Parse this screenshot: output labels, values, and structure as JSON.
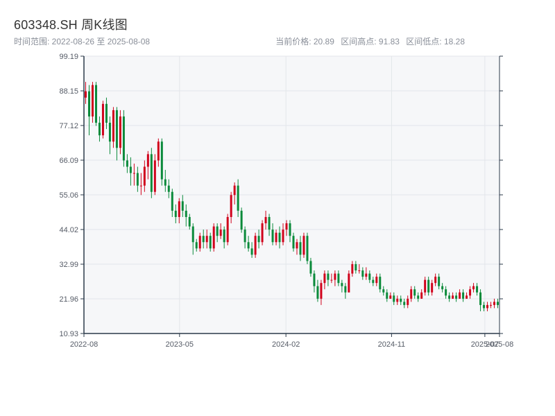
{
  "header": {
    "title": "603348.SH 周K线图",
    "range_text": "时间范围: 2022-08-26 至 2025-08-08",
    "current_price": "当前价格: 20.89",
    "high": "区间高点: 91.83",
    "low": "区间低点: 18.28"
  },
  "colors": {
    "up": "#d0021b",
    "down": "#0a8a3a",
    "grid": "#e3e6ea",
    "plot_bg": "#f6f7f9",
    "axis": "#2b3a4a"
  },
  "chart_data": {
    "type": "candlestick",
    "title": "603348.SH 周K线图",
    "ylim": [
      10.93,
      99.19
    ],
    "y_ticks": [
      "10.93",
      "21.96",
      "32.99",
      "44.02",
      "55.06",
      "66.09",
      "77.12",
      "88.15",
      "99.19"
    ],
    "x_range": [
      "2022-08-26",
      "2025-08-08"
    ],
    "x_ticks": [
      {
        "date": "2022-08-26",
        "label": "2022-08"
      },
      {
        "date": "2023-05-01",
        "label": "2023-05"
      },
      {
        "date": "2024-02-01",
        "label": "2024-02"
      },
      {
        "date": "2024-11-01",
        "label": "2024-11"
      },
      {
        "date": "2025-07-01",
        "label": "2025-07"
      },
      {
        "date": "2025-08-08",
        "label": "2025-08"
      }
    ],
    "candles": [
      [
        86,
        88,
        91,
        84
      ],
      [
        88,
        80,
        90,
        74
      ],
      [
        80,
        90,
        91,
        78
      ],
      [
        90,
        78,
        91,
        77
      ],
      [
        78,
        74,
        80,
        72
      ],
      [
        74,
        84,
        85,
        73
      ],
      [
        84,
        78,
        86,
        76
      ],
      [
        78,
        72,
        80,
        68
      ],
      [
        72,
        82,
        83,
        70
      ],
      [
        82,
        70,
        83,
        66
      ],
      [
        70,
        80,
        82,
        68
      ],
      [
        80,
        66,
        82,
        64
      ],
      [
        66,
        64,
        68,
        62
      ],
      [
        64,
        62,
        67,
        58
      ],
      [
        62,
        62,
        65,
        58
      ],
      [
        62,
        58,
        64,
        56
      ],
      [
        58,
        58,
        62,
        55
      ],
      [
        58,
        64,
        66,
        56
      ],
      [
        64,
        68,
        69,
        60
      ],
      [
        68,
        56,
        70,
        54
      ],
      [
        56,
        66,
        68,
        55
      ],
      [
        66,
        72,
        73,
        64
      ],
      [
        72,
        60,
        73,
        58
      ],
      [
        60,
        58,
        63,
        56
      ],
      [
        58,
        56,
        60,
        54
      ],
      [
        56,
        50,
        57,
        48
      ],
      [
        50,
        48,
        52,
        46
      ],
      [
        48,
        53,
        54,
        46
      ],
      [
        53,
        50,
        55,
        48
      ],
      [
        50,
        48,
        52,
        45
      ],
      [
        48,
        45,
        49,
        44
      ],
      [
        45,
        40,
        46,
        36
      ],
      [
        40,
        38,
        41,
        37
      ],
      [
        38,
        42,
        43,
        37
      ],
      [
        42,
        40,
        44,
        38
      ],
      [
        40,
        42,
        44,
        38
      ],
      [
        42,
        38,
        43,
        37
      ],
      [
        38,
        45,
        46,
        37
      ],
      [
        45,
        42,
        46,
        40
      ],
      [
        42,
        44,
        46,
        41
      ],
      [
        44,
        40,
        45,
        38
      ],
      [
        40,
        48,
        49,
        39
      ],
      [
        48,
        55,
        56,
        46
      ],
      [
        55,
        58,
        59,
        52
      ],
      [
        58,
        50,
        60,
        48
      ],
      [
        50,
        44,
        51,
        43
      ],
      [
        44,
        40,
        45,
        38
      ],
      [
        40,
        38,
        42,
        37
      ],
      [
        38,
        36,
        40,
        35
      ],
      [
        36,
        42,
        43,
        35
      ],
      [
        42,
        40,
        44,
        38
      ],
      [
        40,
        46,
        47,
        39
      ],
      [
        46,
        48,
        50,
        44
      ],
      [
        48,
        44,
        49,
        42
      ],
      [
        44,
        40,
        46,
        39
      ],
      [
        40,
        43,
        44,
        39
      ],
      [
        43,
        40,
        45,
        38
      ],
      [
        40,
        44,
        46,
        39
      ],
      [
        44,
        46,
        47,
        42
      ],
      [
        46,
        42,
        47,
        40
      ],
      [
        42,
        38,
        43,
        37
      ],
      [
        38,
        40,
        41,
        36
      ],
      [
        40,
        36,
        42,
        34
      ],
      [
        36,
        42,
        43,
        35
      ],
      [
        42,
        34,
        43,
        33
      ],
      [
        34,
        30,
        35,
        29
      ],
      [
        30,
        26,
        31,
        24
      ],
      [
        26,
        22,
        28,
        21
      ],
      [
        22,
        27,
        28,
        20
      ],
      [
        27,
        30,
        31,
        25
      ],
      [
        30,
        28,
        31,
        26
      ],
      [
        28,
        28,
        30,
        27
      ],
      [
        28,
        30,
        31,
        26
      ],
      [
        30,
        27,
        31,
        26
      ],
      [
        27,
        26,
        28,
        24
      ],
      [
        26,
        24,
        27,
        22
      ],
      [
        24,
        30,
        31,
        24
      ],
      [
        30,
        33,
        34,
        29
      ],
      [
        33,
        31,
        34,
        30
      ],
      [
        31,
        31,
        33,
        30
      ],
      [
        31,
        29,
        32,
        28
      ],
      [
        29,
        30,
        32,
        28
      ],
      [
        30,
        28,
        31,
        27
      ],
      [
        28,
        27,
        29,
        26
      ],
      [
        27,
        29,
        30,
        26
      ],
      [
        29,
        25,
        30,
        24
      ],
      [
        25,
        24,
        26,
        23
      ],
      [
        24,
        22,
        25,
        21
      ],
      [
        22,
        23,
        24,
        22
      ],
      [
        23,
        21,
        24,
        20
      ],
      [
        21,
        22,
        23,
        20
      ],
      [
        22,
        21,
        23,
        20
      ],
      [
        21,
        20,
        22,
        19
      ],
      [
        20,
        22,
        23,
        19
      ],
      [
        22,
        25,
        26,
        21
      ],
      [
        25,
        23,
        26,
        22
      ],
      [
        23,
        22,
        24,
        21
      ],
      [
        22,
        24,
        25,
        22
      ],
      [
        24,
        28,
        29,
        23
      ],
      [
        28,
        24,
        29,
        23
      ],
      [
        24,
        27,
        28,
        23
      ],
      [
        27,
        29,
        30,
        26
      ],
      [
        29,
        26,
        30,
        25
      ],
      [
        26,
        25,
        27,
        24
      ],
      [
        25,
        23,
        26,
        22
      ],
      [
        23,
        22,
        24,
        21
      ],
      [
        22,
        23,
        24,
        22
      ],
      [
        23,
        22,
        24,
        21
      ],
      [
        22,
        24,
        25,
        22
      ],
      [
        24,
        22,
        25,
        21
      ],
      [
        22,
        23,
        24,
        22
      ],
      [
        23,
        25,
        26,
        22
      ],
      [
        25,
        26,
        27,
        24
      ],
      [
        26,
        24,
        27,
        23
      ],
      [
        24,
        20,
        25,
        18
      ],
      [
        20,
        19,
        21,
        18
      ],
      [
        19,
        20,
        21,
        18
      ],
      [
        20,
        20,
        21,
        19
      ],
      [
        20,
        21,
        22,
        19
      ],
      [
        21,
        20,
        22,
        19
      ]
    ]
  }
}
